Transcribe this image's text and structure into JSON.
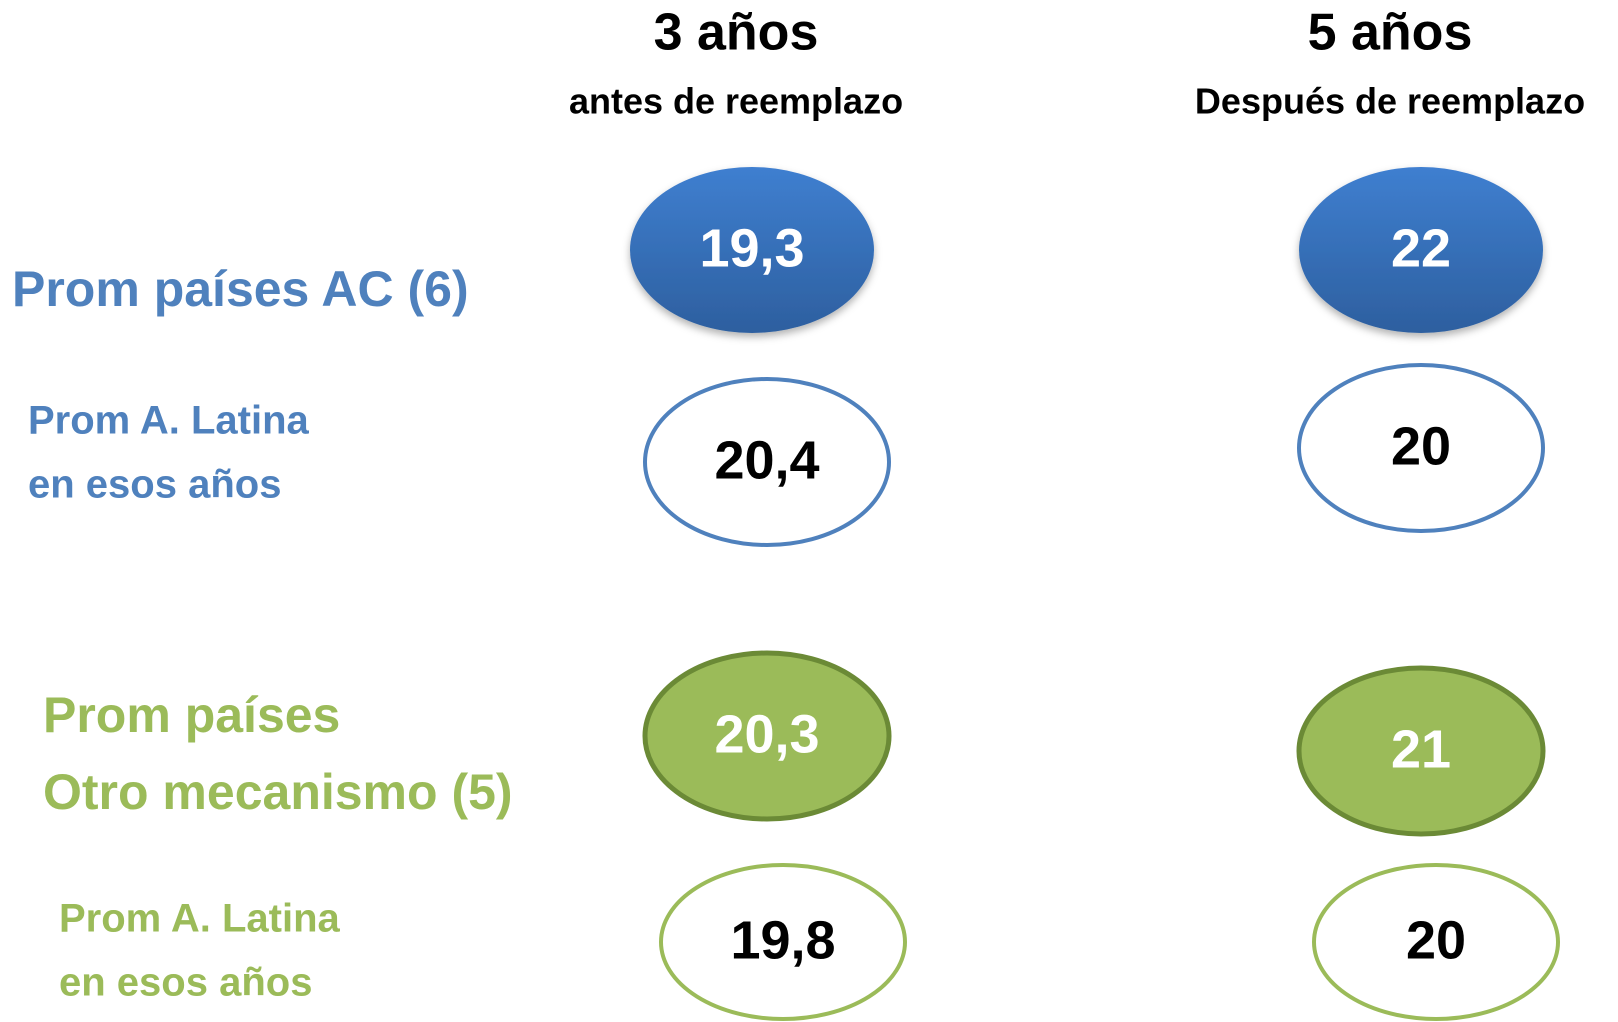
{
  "columns": [
    {
      "title": "3 años",
      "subtitle": "antes de reemplazo"
    },
    {
      "title": "5 años",
      "subtitle": "Después de reemplazo"
    }
  ],
  "rows": [
    {
      "label": [
        "Prom países AC (6)"
      ],
      "values": [
        "19,3",
        "22"
      ]
    },
    {
      "label": [
        "Prom A. Latina",
        "en esos años"
      ],
      "values": [
        "20,4",
        "20"
      ]
    },
    {
      "label": [
        "Prom países",
        "Otro mecanismo (5)"
      ],
      "values": [
        "20,3",
        "21"
      ]
    },
    {
      "label": [
        "Prom A. Latina",
        "en esos años"
      ],
      "values": [
        "19,8",
        "20"
      ]
    }
  ]
}
